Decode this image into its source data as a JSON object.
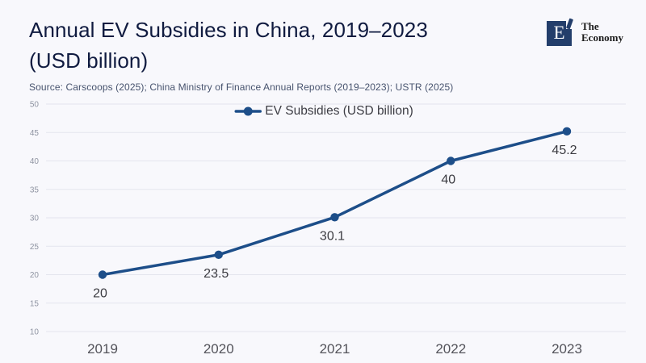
{
  "header": {
    "title_line1": "Annual EV Subsidies in China, 2019–2023",
    "title_line2": "(USD billion)",
    "source": "Source: Carscoops (2025); China Ministry of Finance Annual Reports (2019–2023); USTR (2025)"
  },
  "logo": {
    "letter": "E",
    "name_line1": "The",
    "name_line2": "Economy"
  },
  "colors": {
    "background": "#f8f8fc",
    "title": "#101b40",
    "line": "#1d4e89",
    "grid": "#e4e5ee",
    "y_tick_label": "#8e93a1",
    "x_axis_label": "#53535a",
    "data_label": "#3b3b41",
    "logo_navy": "#233e6b"
  },
  "chart_data": {
    "type": "line",
    "title": "Annual EV Subsidies in China, 2019–2023 (USD billion)",
    "legend_label": "EV Subsidies (USD billion)",
    "legend_position": "top-center",
    "categories": [
      "2019",
      "2020",
      "2021",
      "2022",
      "2023"
    ],
    "series": [
      {
        "name": "EV Subsidies (USD billion)",
        "values": [
          20,
          23.5,
          30.1,
          40,
          45.2
        ],
        "color": "#1d4e89"
      }
    ],
    "data_labels": [
      "20",
      "23.5",
      "30.1",
      "40",
      "45.2"
    ],
    "yticks": [
      10,
      15,
      20,
      25,
      30,
      35,
      40,
      45,
      50
    ],
    "ylim": [
      10,
      50
    ],
    "grid": "horizontal",
    "xlabel": "",
    "ylabel": ""
  }
}
